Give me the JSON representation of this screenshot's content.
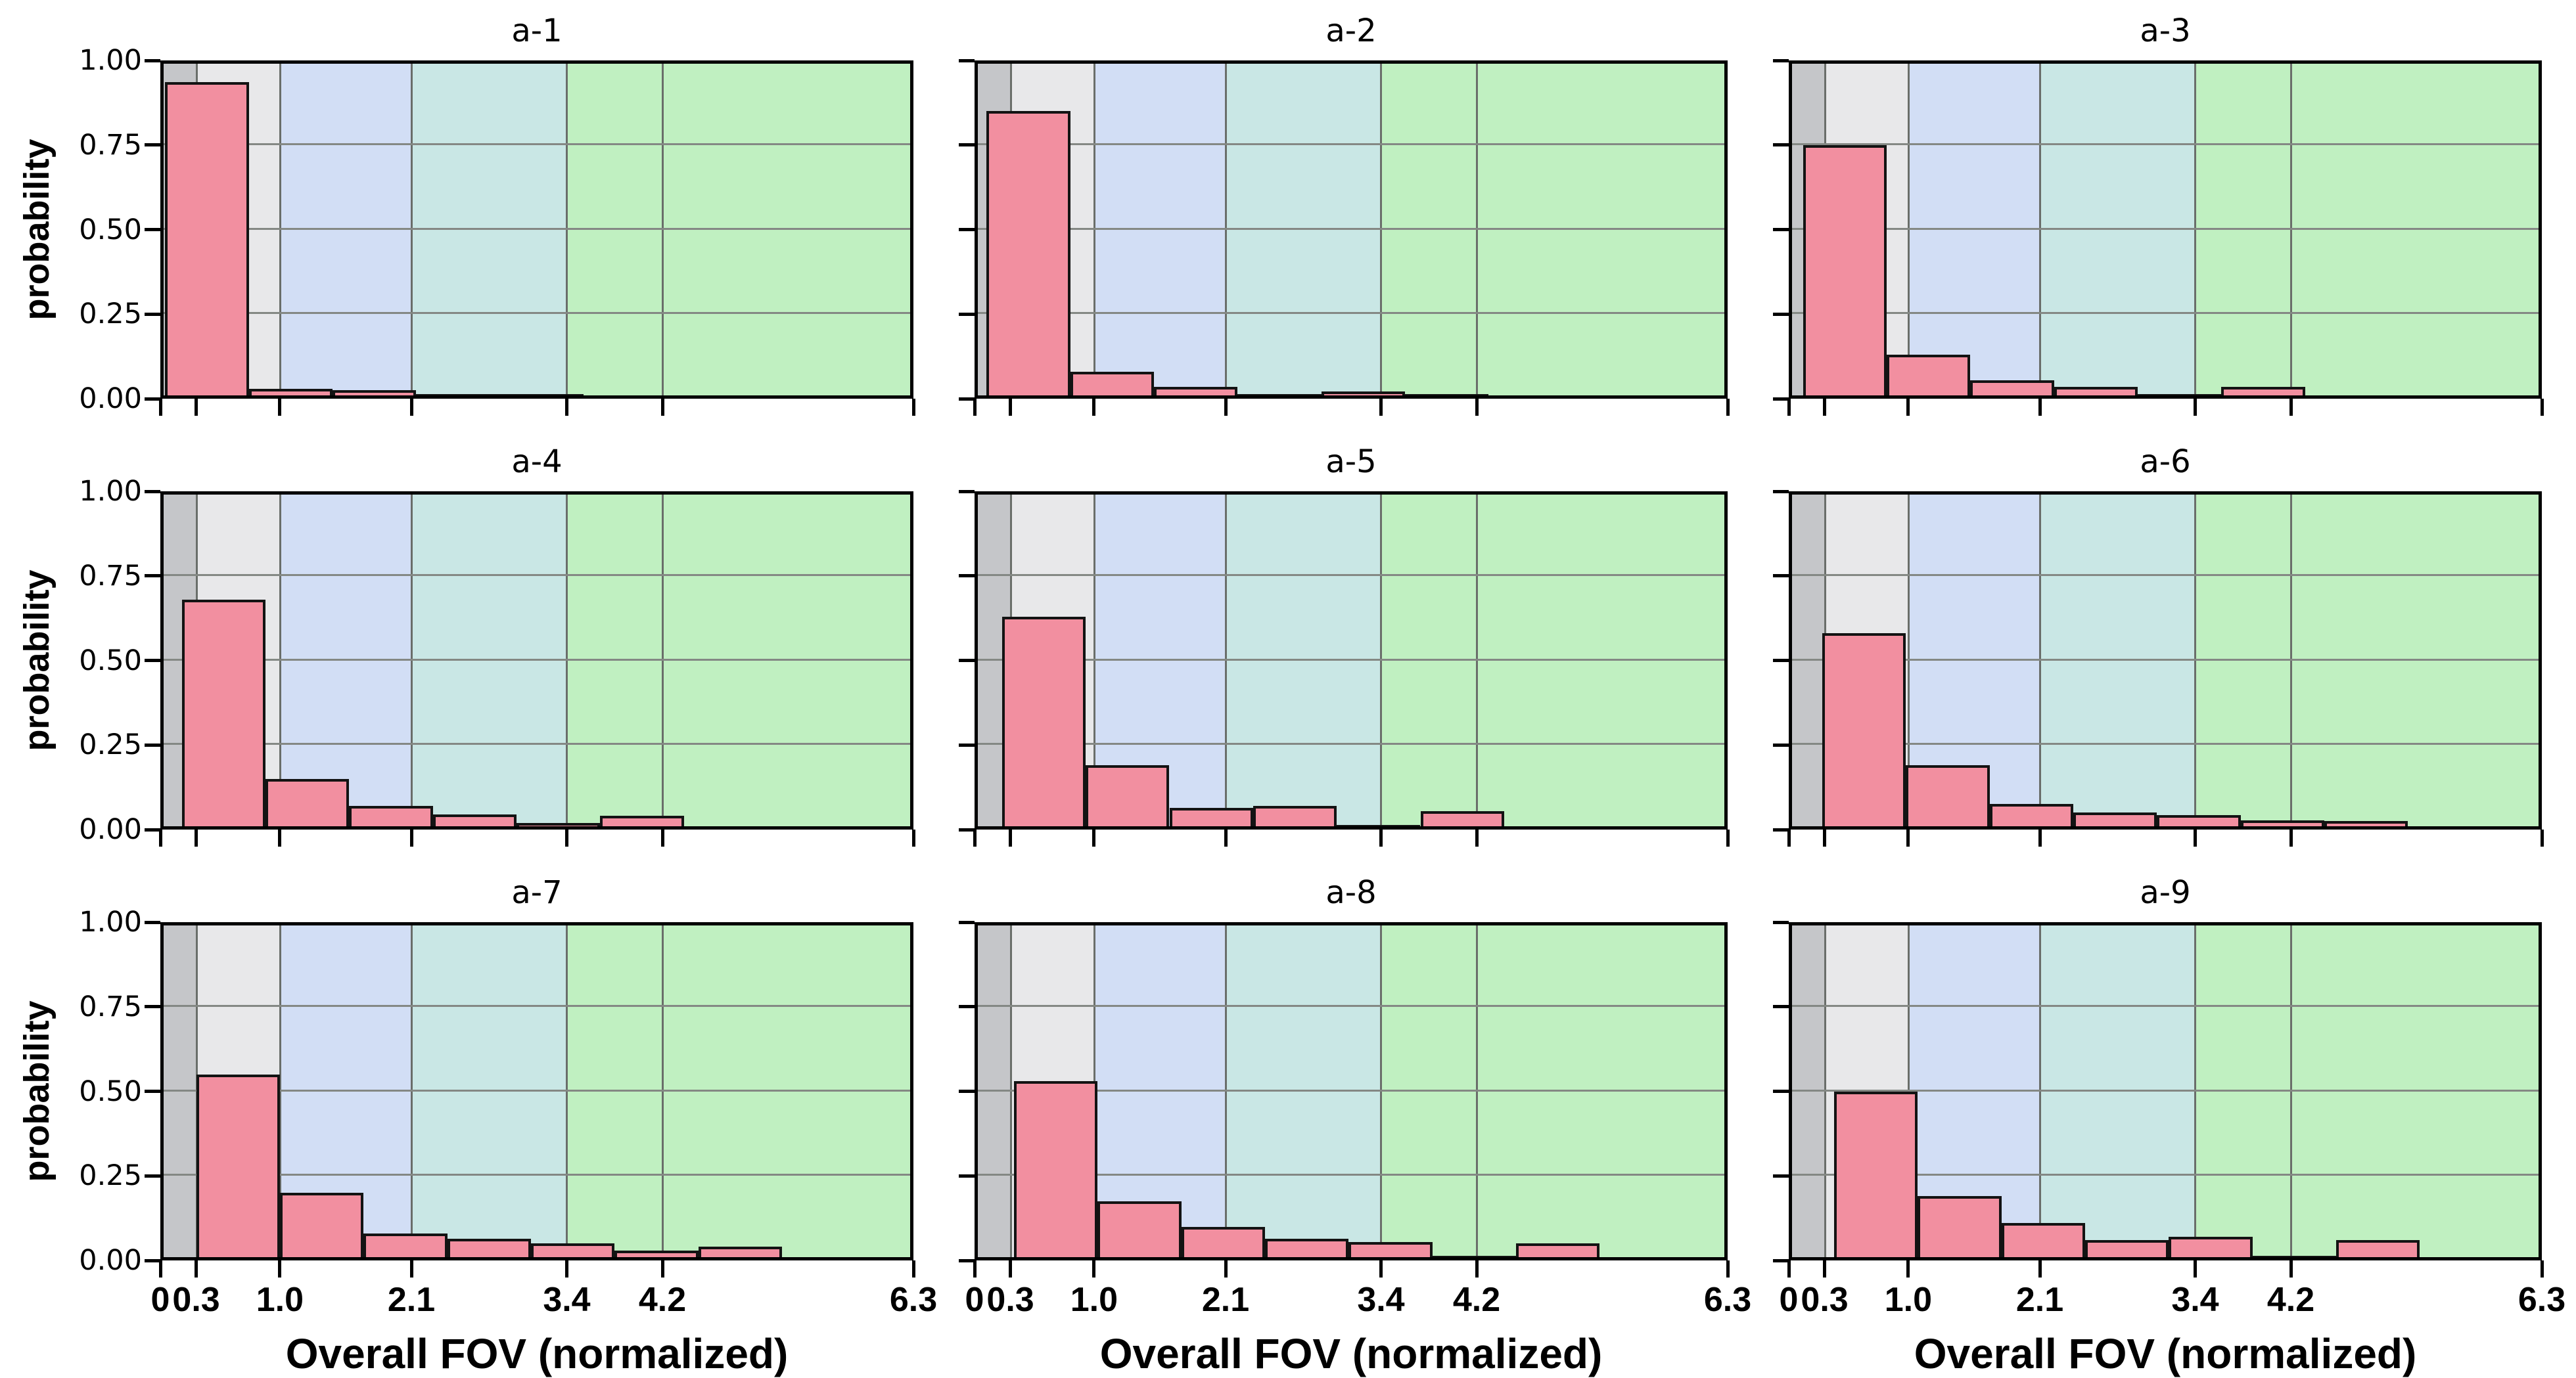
{
  "chart_data": {
    "type": "bar",
    "subtype": "histogram-grid-3x3",
    "title": "",
    "xlabel": "Overall FOV (normalized)",
    "ylabel": "probability",
    "xlim": [
      0,
      6.3
    ],
    "ylim": [
      0,
      1
    ],
    "x_tick_values": [
      0,
      0.3,
      1.0,
      2.1,
      3.4,
      4.2,
      6.3
    ],
    "x_tick_labels": [
      "0",
      "0.3",
      "1.0",
      "2.1",
      "3.4",
      "4.2",
      "6.3"
    ],
    "y_tick_values": [
      0,
      0.25,
      0.5,
      0.75,
      1.0
    ],
    "y_tick_labels": [
      "0.00",
      "0.25",
      "0.50",
      "0.75",
      "1.00"
    ],
    "grid": true,
    "legend": "none",
    "bin_width": 0.7,
    "bar_color": "#f28fa0",
    "bar_edge_color": "#131313",
    "background_bands": [
      {
        "from": 0.0,
        "to": 0.3,
        "color": "#c5c6c9"
      },
      {
        "from": 0.3,
        "to": 1.0,
        "color": "#e8e8ea"
      },
      {
        "from": 1.0,
        "to": 2.1,
        "color": "#d2def5"
      },
      {
        "from": 2.1,
        "to": 3.4,
        "color": "#c9e7e5"
      },
      {
        "from": 3.4,
        "to": 6.3,
        "color": "#c0f0c1"
      }
    ],
    "subplots": [
      {
        "title": "a-1",
        "bin_start": 0.04,
        "probabilities": [
          0.935,
          0.03,
          0.025,
          0.005,
          0.005
        ]
      },
      {
        "title": "a-2",
        "bin_start": 0.1,
        "probabilities": [
          0.85,
          0.08,
          0.035,
          0.01,
          0.022,
          0.012
        ]
      },
      {
        "title": "a-3",
        "bin_start": 0.12,
        "probabilities": [
          0.75,
          0.13,
          0.055,
          0.035,
          0.012,
          0.035
        ]
      },
      {
        "title": "a-4",
        "bin_start": 0.18,
        "probabilities": [
          0.68,
          0.15,
          0.07,
          0.045,
          0.02,
          0.04
        ]
      },
      {
        "title": "a-5",
        "bin_start": 0.23,
        "probabilities": [
          0.63,
          0.19,
          0.065,
          0.07,
          0.008,
          0.055
        ]
      },
      {
        "title": "a-6",
        "bin_start": 0.28,
        "probabilities": [
          0.58,
          0.19,
          0.075,
          0.05,
          0.042,
          0.028,
          0.025
        ]
      },
      {
        "title": "a-7",
        "bin_start": 0.3,
        "probabilities": [
          0.55,
          0.2,
          0.08,
          0.065,
          0.05,
          0.03,
          0.04
        ]
      },
      {
        "title": "a-8",
        "bin_start": 0.33,
        "probabilities": [
          0.53,
          0.175,
          0.1,
          0.065,
          0.055,
          0.01,
          0.05
        ]
      },
      {
        "title": "a-9",
        "bin_start": 0.38,
        "probabilities": [
          0.5,
          0.19,
          0.11,
          0.06,
          0.07,
          0.005,
          0.06
        ]
      }
    ]
  }
}
